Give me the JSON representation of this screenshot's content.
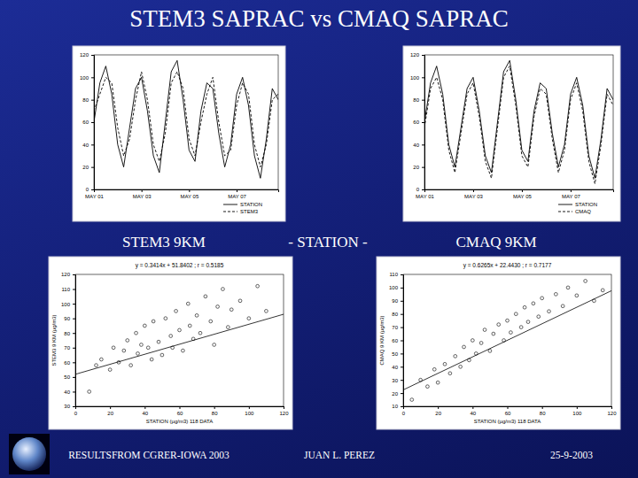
{
  "slide": {
    "title": "STEM3 SAPRAC vs CMAQ SAPRAC",
    "labels": [
      "STEM3 9KM",
      "- STATION -",
      "CMAQ 9KM"
    ],
    "footer": [
      "RESULTSFROM CGRER-IOWA 2003",
      "JUAN L. PEREZ",
      "25-9-2003"
    ]
  },
  "chart_data": [
    {
      "type": "line",
      "categories": [
        "MAY 01",
        null,
        null,
        null,
        null,
        null,
        null,
        null,
        "MAY 03",
        null,
        null,
        null,
        null,
        null,
        null,
        null,
        "MAY 05",
        null,
        null,
        null,
        null,
        null,
        null,
        null,
        "MAY 07",
        null,
        null,
        null,
        null,
        null,
        null,
        null
      ],
      "series": [
        {
          "name": "STATION",
          "color": "#000000",
          "line_style": "solid",
          "values": [
            60,
            95,
            110,
            85,
            40,
            20,
            55,
            90,
            100,
            70,
            30,
            15,
            60,
            105,
            115,
            80,
            35,
            25,
            70,
            95,
            90,
            50,
            20,
            40,
            85,
            100,
            75,
            30,
            10,
            45,
            90,
            80
          ]
        },
        {
          "name": "STEM3",
          "color": "#000000",
          "line_style": "dashed",
          "values": [
            70,
            85,
            100,
            95,
            55,
            30,
            45,
            80,
            105,
            80,
            40,
            25,
            50,
            95,
            105,
            90,
            45,
            30,
            60,
            85,
            100,
            60,
            30,
            35,
            75,
            95,
            85,
            40,
            20,
            40,
            80,
            85
          ]
        }
      ],
      "ylim": [
        0,
        120
      ],
      "yticks": [
        0,
        20,
        40,
        60,
        80,
        100,
        120
      ],
      "legend": "lower right"
    },
    {
      "type": "line",
      "categories": [
        "MAY 01",
        null,
        null,
        null,
        null,
        null,
        null,
        null,
        "MAY 03",
        null,
        null,
        null,
        null,
        null,
        null,
        null,
        "MAY 05",
        null,
        null,
        null,
        null,
        null,
        null,
        null,
        "MAY 07",
        null,
        null,
        null,
        null,
        null,
        null,
        null
      ],
      "series": [
        {
          "name": "STATION",
          "color": "#000000",
          "line_style": "solid",
          "values": [
            60,
            95,
            110,
            85,
            40,
            20,
            55,
            90,
            100,
            70,
            30,
            15,
            60,
            105,
            115,
            80,
            35,
            25,
            70,
            95,
            90,
            50,
            20,
            40,
            85,
            100,
            75,
            30,
            10,
            45,
            90,
            80
          ]
        },
        {
          "name": "CMAQ",
          "color": "#000000",
          "line_style": "dashed",
          "values": [
            55,
            90,
            100,
            80,
            35,
            15,
            50,
            85,
            95,
            65,
            25,
            10,
            55,
            100,
            110,
            75,
            30,
            20,
            65,
            90,
            85,
            45,
            15,
            35,
            80,
            95,
            70,
            25,
            5,
            40,
            85,
            75
          ]
        }
      ],
      "ylim": [
        0,
        120
      ],
      "yticks": [
        0,
        20,
        40,
        60,
        80,
        100,
        120
      ],
      "legend": "lower right"
    },
    {
      "type": "scatter",
      "marker": "circle",
      "color": "#000000",
      "annotation": "y = 0.3414x + 51.8402 ; r = 0.5185",
      "x_label": "STATION (µg/m3) 118 DATA",
      "y_label": "STEM3 9 KM (µg/m3)",
      "x": [
        8,
        12,
        15,
        20,
        22,
        25,
        28,
        30,
        32,
        35,
        36,
        38,
        40,
        42,
        44,
        45,
        48,
        50,
        52,
        55,
        56,
        58,
        60,
        62,
        65,
        66,
        68,
        70,
        72,
        75,
        78,
        80,
        82,
        85,
        88,
        90,
        95,
        100,
        105,
        110
      ],
      "values": [
        40,
        58,
        62,
        55,
        70,
        60,
        68,
        75,
        58,
        80,
        66,
        72,
        85,
        70,
        62,
        88,
        74,
        65,
        90,
        78,
        70,
        95,
        82,
        68,
        100,
        85,
        76,
        92,
        80,
        105,
        88,
        72,
        98,
        110,
        84,
        96,
        102,
        90,
        112,
        95
      ],
      "fit": {
        "slope": 0.3414,
        "intercept": 51.8402
      },
      "xlim": [
        0,
        120
      ],
      "xticks": [
        0,
        20,
        40,
        60,
        80,
        100,
        120
      ],
      "ylim": [
        30,
        120
      ],
      "yticks": [
        30,
        40,
        50,
        60,
        70,
        80,
        90,
        100,
        110,
        120
      ]
    },
    {
      "type": "scatter",
      "marker": "circle",
      "color": "#000000",
      "annotation": "y = 0.6265x + 22.4430 ; r = 0.7177",
      "x_label": "STATION (µg/m3) 118 DATA",
      "y_label": "CMAQ 9 KM (µg/m3)",
      "x": [
        5,
        10,
        14,
        18,
        20,
        24,
        27,
        30,
        33,
        35,
        38,
        40,
        42,
        45,
        47,
        50,
        52,
        55,
        58,
        60,
        62,
        65,
        68,
        70,
        72,
        75,
        78,
        80,
        84,
        88,
        92,
        95,
        100,
        105,
        110,
        115
      ],
      "values": [
        15,
        30,
        25,
        38,
        28,
        42,
        35,
        48,
        40,
        55,
        45,
        60,
        50,
        58,
        68,
        52,
        65,
        72,
        60,
        75,
        66,
        80,
        70,
        85,
        74,
        88,
        78,
        92,
        82,
        95,
        86,
        100,
        94,
        105,
        90,
        98
      ],
      "fit": {
        "slope": 0.6265,
        "intercept": 22.443
      },
      "xlim": [
        0,
        120
      ],
      "xticks": [
        0,
        20,
        40,
        60,
        80,
        100,
        120
      ],
      "ylim": [
        10,
        110
      ],
      "yticks": [
        10,
        20,
        30,
        40,
        50,
        60,
        70,
        80,
        90,
        100,
        110
      ]
    }
  ]
}
